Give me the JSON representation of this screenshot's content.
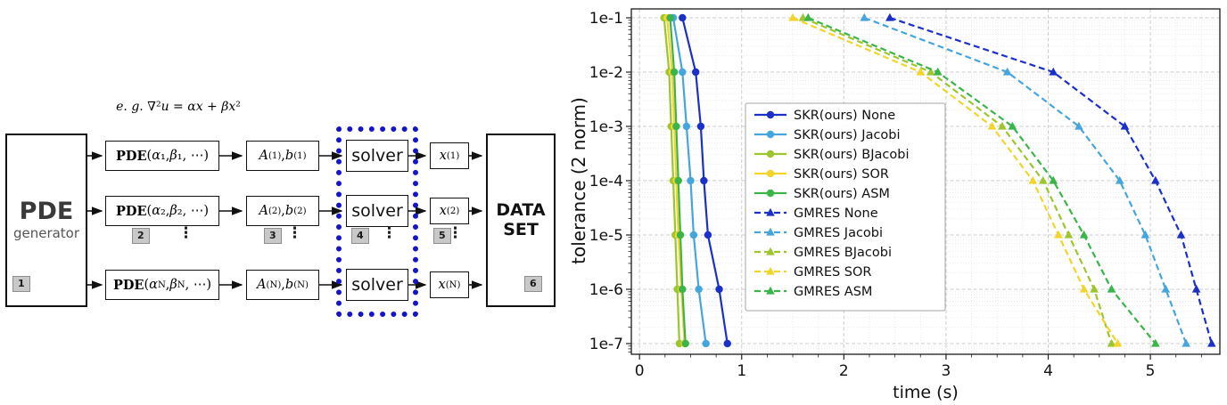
{
  "diagram": {
    "generator": {
      "title": "PDE",
      "subtitle": "generator"
    },
    "formula": "<i>e</i>. <i>g</i>. ∇²<i>u</i> = <i>αx</i> + <i>βx</i>²",
    "rows": [
      {
        "pde": "<b>PDE</b>(<i>α</i>₁, <i>β</i>₁, ⋯)",
        "ab": "<i>A</i><sup>(1)</sup>, <i>b</i><sup>(1)</sup>",
        "x": "<i>x</i><sup>(1)</sup>"
      },
      {
        "pde": "<b>PDE</b>(<i>α</i>₂, <i>β</i>₂, ⋯)",
        "ab": "<i>A</i><sup>(2)</sup>, <i>b</i><sup>(2)</sup>",
        "x": "<i>x</i><sup>(2)</sup>"
      },
      {
        "pde": "<b>PDE</b>(<i>α</i><sub>N</sub>, <i>β</i><sub>N</sub>, ⋯)",
        "ab": "<i>A</i><sup>(N)</sup>, <i>b</i><sup>(N)</sup>",
        "x": "<i>x</i><sup>(N)</sup>"
      }
    ],
    "solver_label": "solver",
    "dataset_label": "DATA SET",
    "badges": [
      "1",
      "2",
      "3",
      "4",
      "5",
      "6"
    ],
    "ellipsis": "⋮"
  },
  "chart_data": {
    "type": "line",
    "title": "",
    "xlabel": "time (s)",
    "ylabel": "tolerance (2 norm)",
    "y_scale": "log",
    "grid": true,
    "legend_position": "center-left",
    "xlim": [
      -0.08,
      5.68
    ],
    "x_ticks": [
      0,
      1,
      2,
      3,
      4,
      5
    ],
    "y_ticks": [
      "1e-1",
      "1e-2",
      "1e-3",
      "1e-4",
      "1e-5",
      "1e-6",
      "1e-7"
    ],
    "tolerances": [
      0.1,
      0.01,
      0.001,
      0.0001,
      1e-05,
      1e-06,
      1e-07
    ],
    "series": [
      {
        "name": "SKR(ours) None",
        "color": "#1b30c8",
        "line": "solid",
        "marker": "circle",
        "times": [
          0.42,
          0.55,
          0.6,
          0.63,
          0.67,
          0.78,
          0.86
        ]
      },
      {
        "name": "SKR(ours) Jacobi",
        "color": "#45a5dd",
        "line": "solid",
        "marker": "circle",
        "times": [
          0.33,
          0.42,
          0.46,
          0.5,
          0.53,
          0.58,
          0.65
        ]
      },
      {
        "name": "SKR(ours) BJacobi",
        "color": "#9dc52e",
        "line": "solid",
        "marker": "circle",
        "times": [
          0.24,
          0.29,
          0.31,
          0.33,
          0.35,
          0.37,
          0.39
        ]
      },
      {
        "name": "SKR(ours) SOR",
        "color": "#f2d42a",
        "line": "solid",
        "marker": "circle",
        "times": [
          0.27,
          0.32,
          0.34,
          0.36,
          0.38,
          0.41,
          0.44
        ]
      },
      {
        "name": "SKR(ours) ASM",
        "color": "#3bb44a",
        "line": "solid",
        "marker": "circle",
        "times": [
          0.3,
          0.34,
          0.36,
          0.38,
          0.4,
          0.42,
          0.45
        ]
      },
      {
        "name": "GMRES None",
        "color": "#1b30c8",
        "line": "dashed",
        "marker": "triangle",
        "times": [
          2.45,
          4.05,
          4.75,
          5.05,
          5.3,
          5.45,
          5.6
        ]
      },
      {
        "name": "GMRES Jacobi",
        "color": "#45a5dd",
        "line": "dashed",
        "marker": "triangle",
        "times": [
          2.2,
          3.6,
          4.3,
          4.7,
          4.95,
          5.15,
          5.35
        ]
      },
      {
        "name": "GMRES BJacobi",
        "color": "#9dc52e",
        "line": "dashed",
        "marker": "triangle",
        "times": [
          1.6,
          2.85,
          3.55,
          3.95,
          4.2,
          4.45,
          4.62
        ]
      },
      {
        "name": "GMRES SOR",
        "color": "#f2d42a",
        "line": "dashed",
        "marker": "triangle",
        "times": [
          1.5,
          2.75,
          3.45,
          3.85,
          4.1,
          4.35,
          4.68
        ]
      },
      {
        "name": "GMRES ASM",
        "color": "#3bb44a",
        "line": "dashed",
        "marker": "triangle",
        "times": [
          1.65,
          2.92,
          3.65,
          4.05,
          4.35,
          4.62,
          5.05
        ]
      }
    ]
  }
}
